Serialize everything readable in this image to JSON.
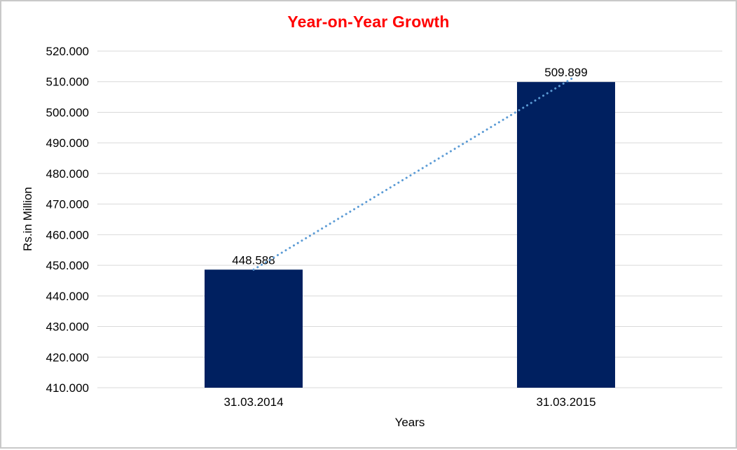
{
  "chart_data": {
    "type": "bar",
    "title": "Year-on-Year Growth",
    "xlabel": "Years",
    "ylabel": "Rs.in Million",
    "categories": [
      "31.03.2014",
      "31.03.2015"
    ],
    "values": [
      448.588,
      509.899
    ],
    "value_labels": [
      "448.588",
      "509.899"
    ],
    "ylim": [
      410,
      520
    ],
    "yticks": [
      {
        "value": 410,
        "label": "410.000"
      },
      {
        "value": 420,
        "label": "420.000"
      },
      {
        "value": 430,
        "label": "430.000"
      },
      {
        "value": 440,
        "label": "440.000"
      },
      {
        "value": 450,
        "label": "450.000"
      },
      {
        "value": 460,
        "label": "460.000"
      },
      {
        "value": 470,
        "label": "470.000"
      },
      {
        "value": 480,
        "label": "480.000"
      },
      {
        "value": 490,
        "label": "490.000"
      },
      {
        "value": 500,
        "label": "500.000"
      },
      {
        "value": 510,
        "label": "510.000"
      },
      {
        "value": 520,
        "label": "520.000"
      }
    ],
    "grid": true,
    "legend": false,
    "colors": {
      "bar": "#002060",
      "title": "#ff0000",
      "gridline": "#d9d9d9",
      "text": "#000000",
      "border": "#c9c9c9",
      "trendline": "#5b9bd5"
    },
    "trendline": {
      "type": "linear",
      "style": "dotted"
    }
  }
}
